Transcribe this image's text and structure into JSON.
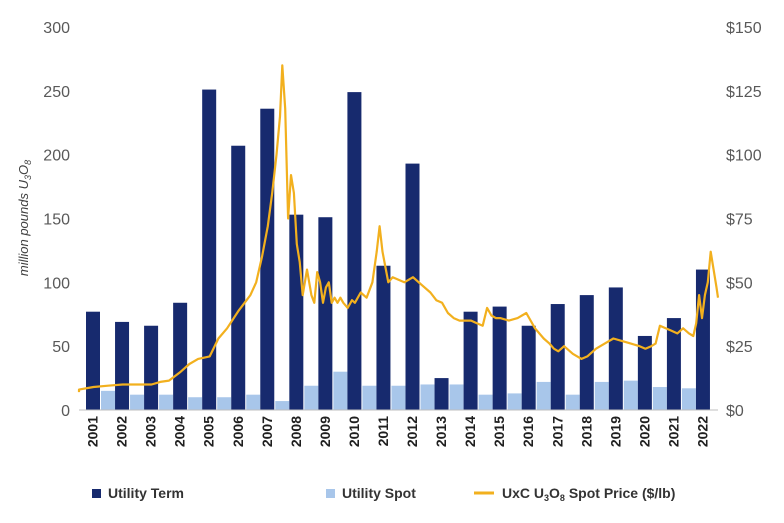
{
  "chart_data": {
    "type": "bar",
    "categories": [
      "2001",
      "2002",
      "2003",
      "2004",
      "2005",
      "2006",
      "2007",
      "2008",
      "2009",
      "2010",
      "2011",
      "2012",
      "2013",
      "2014",
      "2015",
      "2016",
      "2017",
      "2018",
      "2019",
      "2020",
      "2021",
      "2022"
    ],
    "series": [
      {
        "name": "Utility Term",
        "type": "bar",
        "axis": "left",
        "color": "#172a6e",
        "values": [
          77,
          69,
          66,
          84,
          251,
          207,
          236,
          153,
          151,
          249,
          113,
          193,
          25,
          77,
          81,
          66,
          83,
          90,
          96,
          58,
          72,
          110
        ]
      },
      {
        "name": "Utility Spot",
        "type": "bar",
        "axis": "left",
        "color": "#a8c6ea",
        "values": [
          15,
          12,
          12,
          10,
          10,
          12,
          7,
          19,
          30,
          19,
          19,
          20,
          20,
          12,
          13,
          22,
          12,
          22,
          23,
          18,
          17,
          0
        ]
      },
      {
        "name": "UxC U3O8 Spot Price ($/lb)",
        "type": "line",
        "axis": "right",
        "color": "#f2b01e",
        "x": [
          2000.0,
          2000.5,
          2001.0,
          2001.5,
          2002.0,
          2002.5,
          2003.0,
          2003.3,
          2003.6,
          2004.0,
          2004.3,
          2004.6,
          2005.0,
          2005.3,
          2005.6,
          2006.0,
          2006.2,
          2006.4,
          2006.6,
          2006.8,
          2007.0,
          2007.15,
          2007.3,
          2007.42,
          2007.5,
          2007.6,
          2007.7,
          2007.8,
          2007.9,
          2008.0,
          2008.1,
          2008.2,
          2008.35,
          2008.5,
          2008.6,
          2008.7,
          2008.8,
          2008.9,
          2009.0,
          2009.1,
          2009.2,
          2009.3,
          2009.4,
          2009.5,
          2009.6,
          2009.75,
          2009.9,
          2010.0,
          2010.2,
          2010.4,
          2010.6,
          2010.75,
          2010.85,
          2010.95,
          2011.05,
          2011.15,
          2011.3,
          2011.5,
          2011.7,
          2012.0,
          2012.3,
          2012.6,
          2012.8,
          2013.0,
          2013.2,
          2013.4,
          2013.6,
          2013.8,
          2014.0,
          2014.2,
          2014.4,
          2014.55,
          2014.7,
          2014.85,
          2015.0,
          2015.3,
          2015.6,
          2015.9,
          2016.2,
          2016.5,
          2016.7,
          2016.85,
          2017.0,
          2017.2,
          2017.5,
          2017.8,
          2018.0,
          2018.3,
          2018.6,
          2018.9,
          2019.2,
          2019.5,
          2019.8,
          2020.0,
          2020.2,
          2020.35,
          2020.5,
          2020.7,
          2020.9,
          2021.1,
          2021.3,
          2021.5,
          2021.65,
          2021.75,
          2021.85,
          2021.95,
          2022.05,
          2022.15,
          2022.25,
          2022.35,
          2022.45,
          2022.55
        ],
        "values": [
          7,
          8,
          9,
          9.5,
          10,
          10,
          10,
          11,
          11.5,
          15,
          18,
          20,
          21,
          28,
          32,
          39,
          42,
          45,
          50,
          60,
          72,
          85,
          100,
          115,
          135,
          118,
          75,
          92,
          85,
          65,
          58,
          45,
          55,
          45,
          42,
          54,
          50,
          42,
          48,
          50,
          42,
          44,
          42,
          44,
          42,
          40,
          43,
          42,
          46,
          44,
          50,
          62,
          72,
          62,
          56,
          50,
          52,
          51,
          50,
          52,
          49,
          46,
          43,
          42,
          38,
          36,
          35,
          35,
          35,
          34,
          33,
          40,
          37,
          36,
          36,
          35,
          36,
          38,
          32,
          28,
          26,
          24,
          23,
          25,
          22,
          20,
          21,
          24,
          26,
          28,
          27,
          26,
          25,
          24,
          25,
          26,
          33,
          32,
          31,
          30,
          32,
          30,
          29,
          34,
          45,
          36,
          45,
          50,
          62,
          55,
          48,
          44
        ]
      }
    ],
    "y_left": {
      "label": "million pounds U3O8",
      "min": 0,
      "max": 300,
      "ticks": [
        0,
        50,
        100,
        150,
        200,
        250,
        300
      ]
    },
    "y_right": {
      "min": 0,
      "max": 150,
      "ticks": [
        "$0",
        "$25",
        "$50",
        "$75",
        "$100",
        "$125",
        "$150"
      ]
    },
    "legend": {
      "position": "bottom",
      "entries": [
        "Utility Term",
        "Utility Spot",
        "UxC U3O8 Spot Price ($/lb)"
      ]
    },
    "grid": false
  }
}
